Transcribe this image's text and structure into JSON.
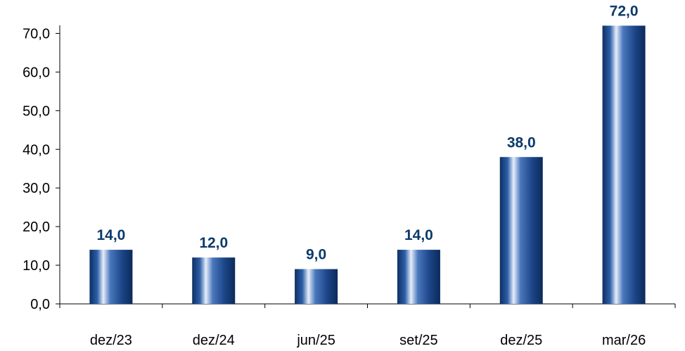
{
  "chart_data": {
    "type": "bar",
    "title": "",
    "xlabel": "",
    "ylabel": "",
    "categories": [
      "dez/23",
      "dez/24",
      "jun/25",
      "set/25",
      "dez/25",
      "mar/26"
    ],
    "values": [
      14.0,
      12.0,
      9.0,
      14.0,
      38.0,
      72.0
    ],
    "value_labels": [
      "14,0",
      "12,0",
      "9,0",
      "14,0",
      "38,0",
      "72,0"
    ],
    "ylim": [
      0,
      75
    ],
    "yticks": [
      0,
      10,
      20,
      30,
      40,
      50,
      60,
      70
    ],
    "ytick_labels": [
      "0,0",
      "10,0",
      "20,0",
      "30,0",
      "40,0",
      "50,0",
      "60,0",
      "70,0"
    ],
    "grid": false,
    "legend": "none",
    "colors": {
      "bar_dark": "#0d2f63",
      "bar_mid": "#2e5fa8",
      "bar_highlight": "#e6eefa",
      "label": "#0a3a6b"
    }
  }
}
